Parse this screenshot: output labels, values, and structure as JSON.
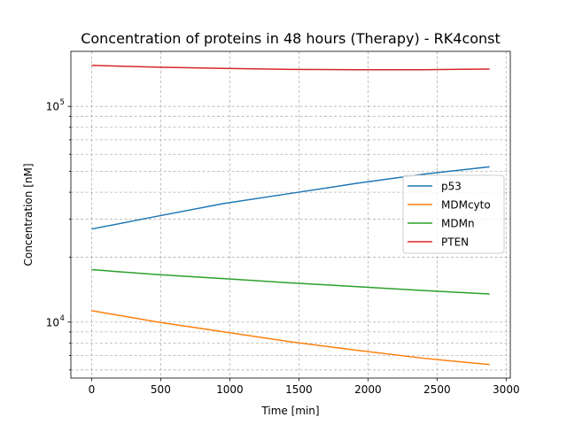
{
  "chart_data": {
    "type": "line",
    "title": "Concentration of proteins in 48 hours (Therapy) - RK4const",
    "xlabel": "Time [min]",
    "ylabel": "Concentration [nM]",
    "yscale": "log",
    "xlim": [
      -150,
      3030
    ],
    "ylim": [
      5500,
      180000
    ],
    "x_ticks": [
      0,
      500,
      1000,
      1500,
      2000,
      2500,
      3000
    ],
    "x_tick_labels": [
      "0",
      "500",
      "1000",
      "1500",
      "2000",
      "2500",
      "3000"
    ],
    "y_major_ticks": [
      10000,
      100000
    ],
    "y_major_tick_labels": [
      {
        "base": "10",
        "exp": "4"
      },
      {
        "base": "10",
        "exp": "5"
      }
    ],
    "y_minor_ticks": [
      6000,
      7000,
      8000,
      9000,
      20000,
      30000,
      40000,
      50000,
      60000,
      70000,
      80000,
      90000
    ],
    "grid": true,
    "legend_position": "center-right",
    "x": [
      0,
      480,
      960,
      1440,
      1920,
      2400,
      2880
    ],
    "series": [
      {
        "name": "p53",
        "color": "#1f77b4",
        "values": [
          27000,
          31000,
          35500,
          39500,
          44000,
          48500,
          52500
        ]
      },
      {
        "name": "MDMcyto",
        "color": "#ff7f0e",
        "values": [
          11300,
          10000,
          9000,
          8100,
          7400,
          6800,
          6350
        ]
      },
      {
        "name": "MDMn",
        "color": "#2ca02c",
        "values": [
          17500,
          16600,
          15900,
          15200,
          14600,
          14000,
          13500
        ]
      },
      {
        "name": "PTEN",
        "color": "#d62728",
        "values": [
          155000,
          152000,
          150000,
          148500,
          148000,
          148000,
          149000
        ]
      }
    ]
  }
}
